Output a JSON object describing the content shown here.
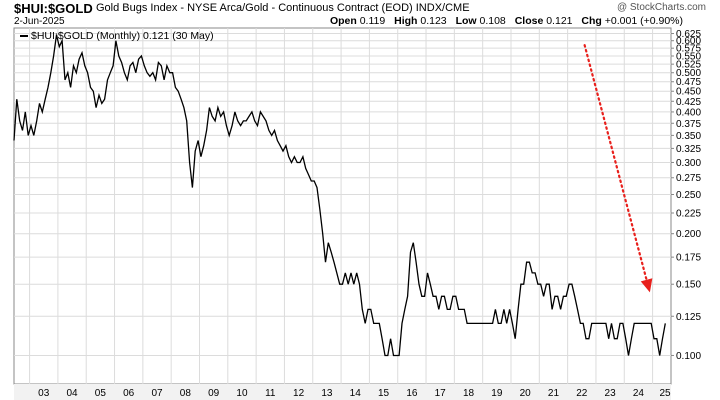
{
  "header": {
    "symbol": "$HUI:$GOLD",
    "description": "Gold Bugs Index - NYSE Arca/Gold - Continuous Contract (EOD) INDX/CME",
    "brand": "@ StockCharts.com",
    "date": "2-Jun-2025",
    "open_label": "Open",
    "open": "0.119",
    "high_label": "High",
    "high": "0.123",
    "low_label": "Low",
    "low": "0.108",
    "close_label": "Close",
    "close": "0.121",
    "chg_label": "Chg",
    "chg": "+0.001 (+0.90%)"
  },
  "legend": {
    "text": "$HUI:$GOLD (Monthly) 0.121 (30 May)"
  },
  "colors": {
    "line": "#000000",
    "grid": "#dcdcdc",
    "arrow": "#e8201c",
    "axis_text": "#000000"
  },
  "chart_data": {
    "type": "line",
    "title": "",
    "xlabel": "",
    "ylabel": "",
    "ylim": [
      0.085,
      0.645
    ],
    "yscale": "log",
    "grid": true,
    "y_ticks": [
      "0.100",
      "0.125",
      "0.150",
      "0.175",
      "0.200",
      "0.225",
      "0.250",
      "0.275",
      "0.300",
      "0.325",
      "0.350",
      "0.375",
      "0.400",
      "0.425",
      "0.450",
      "0.475",
      "0.500",
      "0.525",
      "0.550",
      "0.575",
      "0.600",
      "0.625"
    ],
    "x_tick_labels": [
      "03",
      "04",
      "05",
      "06",
      "07",
      "08",
      "09",
      "10",
      "11",
      "12",
      "13",
      "14",
      "15",
      "16",
      "17",
      "18",
      "19",
      "20",
      "21",
      "22",
      "23",
      "24",
      "25"
    ],
    "x_range": [
      2002.45,
      2025.65
    ],
    "series": [
      {
        "points": [
          [
            2002.45,
            0.34
          ],
          [
            2002.55,
            0.43
          ],
          [
            2002.65,
            0.38
          ],
          [
            2002.75,
            0.36
          ],
          [
            2002.85,
            0.4
          ],
          [
            2002.95,
            0.35
          ],
          [
            2003.05,
            0.37
          ],
          [
            2003.15,
            0.35
          ],
          [
            2003.25,
            0.38
          ],
          [
            2003.35,
            0.42
          ],
          [
            2003.45,
            0.4
          ],
          [
            2003.55,
            0.43
          ],
          [
            2003.65,
            0.46
          ],
          [
            2003.75,
            0.5
          ],
          [
            2003.85,
            0.55
          ],
          [
            2003.95,
            0.62
          ],
          [
            2004.05,
            0.58
          ],
          [
            2004.15,
            0.6
          ],
          [
            2004.25,
            0.48
          ],
          [
            2004.35,
            0.5
          ],
          [
            2004.45,
            0.46
          ],
          [
            2004.55,
            0.52
          ],
          [
            2004.65,
            0.5
          ],
          [
            2004.75,
            0.54
          ],
          [
            2004.85,
            0.56
          ],
          [
            2004.95,
            0.52
          ],
          [
            2005.05,
            0.5
          ],
          [
            2005.15,
            0.46
          ],
          [
            2005.25,
            0.45
          ],
          [
            2005.35,
            0.41
          ],
          [
            2005.45,
            0.44
          ],
          [
            2005.55,
            0.42
          ],
          [
            2005.65,
            0.43
          ],
          [
            2005.75,
            0.48
          ],
          [
            2005.85,
            0.5
          ],
          [
            2005.95,
            0.52
          ],
          [
            2006.05,
            0.6
          ],
          [
            2006.15,
            0.55
          ],
          [
            2006.25,
            0.53
          ],
          [
            2006.35,
            0.5
          ],
          [
            2006.45,
            0.48
          ],
          [
            2006.55,
            0.52
          ],
          [
            2006.65,
            0.53
          ],
          [
            2006.75,
            0.5
          ],
          [
            2006.85,
            0.54
          ],
          [
            2006.95,
            0.55
          ],
          [
            2007.05,
            0.52
          ],
          [
            2007.15,
            0.5
          ],
          [
            2007.25,
            0.49
          ],
          [
            2007.35,
            0.5
          ],
          [
            2007.45,
            0.48
          ],
          [
            2007.55,
            0.53
          ],
          [
            2007.65,
            0.52
          ],
          [
            2007.75,
            0.48
          ],
          [
            2007.85,
            0.52
          ],
          [
            2007.95,
            0.5
          ],
          [
            2008.05,
            0.5
          ],
          [
            2008.15,
            0.46
          ],
          [
            2008.25,
            0.45
          ],
          [
            2008.35,
            0.43
          ],
          [
            2008.45,
            0.41
          ],
          [
            2008.55,
            0.38
          ],
          [
            2008.65,
            0.3
          ],
          [
            2008.75,
            0.26
          ],
          [
            2008.85,
            0.32
          ],
          [
            2008.95,
            0.34
          ],
          [
            2009.05,
            0.31
          ],
          [
            2009.15,
            0.33
          ],
          [
            2009.25,
            0.36
          ],
          [
            2009.35,
            0.41
          ],
          [
            2009.45,
            0.39
          ],
          [
            2009.55,
            0.38
          ],
          [
            2009.65,
            0.41
          ],
          [
            2009.75,
            0.39
          ],
          [
            2009.85,
            0.4
          ],
          [
            2009.95,
            0.37
          ],
          [
            2010.05,
            0.35
          ],
          [
            2010.15,
            0.37
          ],
          [
            2010.25,
            0.4
          ],
          [
            2010.35,
            0.38
          ],
          [
            2010.45,
            0.37
          ],
          [
            2010.55,
            0.38
          ],
          [
            2010.65,
            0.38
          ],
          [
            2010.75,
            0.39
          ],
          [
            2010.85,
            0.4
          ],
          [
            2010.95,
            0.38
          ],
          [
            2011.05,
            0.37
          ],
          [
            2011.15,
            0.4
          ],
          [
            2011.25,
            0.39
          ],
          [
            2011.35,
            0.38
          ],
          [
            2011.45,
            0.36
          ],
          [
            2011.55,
            0.35
          ],
          [
            2011.65,
            0.36
          ],
          [
            2011.75,
            0.34
          ],
          [
            2011.85,
            0.33
          ],
          [
            2011.95,
            0.32
          ],
          [
            2012.05,
            0.33
          ],
          [
            2012.15,
            0.31
          ],
          [
            2012.25,
            0.3
          ],
          [
            2012.35,
            0.31
          ],
          [
            2012.45,
            0.3
          ],
          [
            2012.55,
            0.3
          ],
          [
            2012.65,
            0.31
          ],
          [
            2012.75,
            0.29
          ],
          [
            2012.85,
            0.28
          ],
          [
            2012.95,
            0.27
          ],
          [
            2013.05,
            0.27
          ],
          [
            2013.15,
            0.26
          ],
          [
            2013.25,
            0.23
          ],
          [
            2013.35,
            0.2
          ],
          [
            2013.45,
            0.17
          ],
          [
            2013.55,
            0.19
          ],
          [
            2013.65,
            0.18
          ],
          [
            2013.75,
            0.17
          ],
          [
            2013.85,
            0.16
          ],
          [
            2013.95,
            0.15
          ],
          [
            2014.05,
            0.15
          ],
          [
            2014.15,
            0.16
          ],
          [
            2014.25,
            0.15
          ],
          [
            2014.35,
            0.16
          ],
          [
            2014.45,
            0.15
          ],
          [
            2014.55,
            0.16
          ],
          [
            2014.65,
            0.15
          ],
          [
            2014.75,
            0.13
          ],
          [
            2014.85,
            0.12
          ],
          [
            2014.95,
            0.13
          ],
          [
            2015.05,
            0.13
          ],
          [
            2015.15,
            0.12
          ],
          [
            2015.25,
            0.12
          ],
          [
            2015.35,
            0.12
          ],
          [
            2015.45,
            0.11
          ],
          [
            2015.55,
            0.1
          ],
          [
            2015.65,
            0.1
          ],
          [
            2015.75,
            0.11
          ],
          [
            2015.85,
            0.1
          ],
          [
            2015.95,
            0.1
          ],
          [
            2016.05,
            0.1
          ],
          [
            2016.15,
            0.12
          ],
          [
            2016.25,
            0.13
          ],
          [
            2016.35,
            0.14
          ],
          [
            2016.45,
            0.18
          ],
          [
            2016.55,
            0.19
          ],
          [
            2016.65,
            0.17
          ],
          [
            2016.75,
            0.15
          ],
          [
            2016.85,
            0.14
          ],
          [
            2016.95,
            0.14
          ],
          [
            2017.05,
            0.16
          ],
          [
            2017.15,
            0.15
          ],
          [
            2017.25,
            0.14
          ],
          [
            2017.35,
            0.14
          ],
          [
            2017.45,
            0.13
          ],
          [
            2017.55,
            0.14
          ],
          [
            2017.65,
            0.14
          ],
          [
            2017.75,
            0.13
          ],
          [
            2017.85,
            0.13
          ],
          [
            2017.95,
            0.14
          ],
          [
            2018.05,
            0.14
          ],
          [
            2018.15,
            0.13
          ],
          [
            2018.25,
            0.13
          ],
          [
            2018.35,
            0.13
          ],
          [
            2018.45,
            0.12
          ],
          [
            2018.55,
            0.12
          ],
          [
            2018.65,
            0.12
          ],
          [
            2018.75,
            0.12
          ],
          [
            2018.85,
            0.12
          ],
          [
            2018.95,
            0.12
          ],
          [
            2019.05,
            0.12
          ],
          [
            2019.15,
            0.12
          ],
          [
            2019.25,
            0.12
          ],
          [
            2019.35,
            0.12
          ],
          [
            2019.45,
            0.13
          ],
          [
            2019.55,
            0.12
          ],
          [
            2019.65,
            0.12
          ],
          [
            2019.75,
            0.13
          ],
          [
            2019.85,
            0.12
          ],
          [
            2019.95,
            0.13
          ],
          [
            2020.05,
            0.12
          ],
          [
            2020.15,
            0.11
          ],
          [
            2020.25,
            0.13
          ],
          [
            2020.35,
            0.15
          ],
          [
            2020.45,
            0.15
          ],
          [
            2020.55,
            0.17
          ],
          [
            2020.65,
            0.17
          ],
          [
            2020.75,
            0.16
          ],
          [
            2020.85,
            0.16
          ],
          [
            2020.95,
            0.15
          ],
          [
            2021.05,
            0.15
          ],
          [
            2021.15,
            0.14
          ],
          [
            2021.25,
            0.15
          ],
          [
            2021.35,
            0.15
          ],
          [
            2021.45,
            0.13
          ],
          [
            2021.55,
            0.14
          ],
          [
            2021.65,
            0.14
          ],
          [
            2021.75,
            0.13
          ],
          [
            2021.85,
            0.14
          ],
          [
            2021.95,
            0.14
          ],
          [
            2022.05,
            0.15
          ],
          [
            2022.15,
            0.15
          ],
          [
            2022.25,
            0.14
          ],
          [
            2022.35,
            0.13
          ],
          [
            2022.45,
            0.12
          ],
          [
            2022.55,
            0.12
          ],
          [
            2022.65,
            0.11
          ],
          [
            2022.75,
            0.11
          ],
          [
            2022.85,
            0.12
          ],
          [
            2022.95,
            0.12
          ],
          [
            2023.05,
            0.12
          ],
          [
            2023.15,
            0.12
          ],
          [
            2023.25,
            0.12
          ],
          [
            2023.35,
            0.12
          ],
          [
            2023.45,
            0.11
          ],
          [
            2023.55,
            0.12
          ],
          [
            2023.65,
            0.11
          ],
          [
            2023.75,
            0.11
          ],
          [
            2023.85,
            0.12
          ],
          [
            2023.95,
            0.12
          ],
          [
            2024.05,
            0.11
          ],
          [
            2024.15,
            0.1
          ],
          [
            2024.25,
            0.11
          ],
          [
            2024.35,
            0.12
          ],
          [
            2024.45,
            0.12
          ],
          [
            2024.55,
            0.12
          ],
          [
            2024.65,
            0.12
          ],
          [
            2024.75,
            0.12
          ],
          [
            2024.85,
            0.12
          ],
          [
            2024.95,
            0.12
          ],
          [
            2025.05,
            0.11
          ],
          [
            2025.15,
            0.11
          ],
          [
            2025.25,
            0.1
          ],
          [
            2025.35,
            0.11
          ],
          [
            2025.45,
            0.12
          ]
        ]
      }
    ]
  }
}
